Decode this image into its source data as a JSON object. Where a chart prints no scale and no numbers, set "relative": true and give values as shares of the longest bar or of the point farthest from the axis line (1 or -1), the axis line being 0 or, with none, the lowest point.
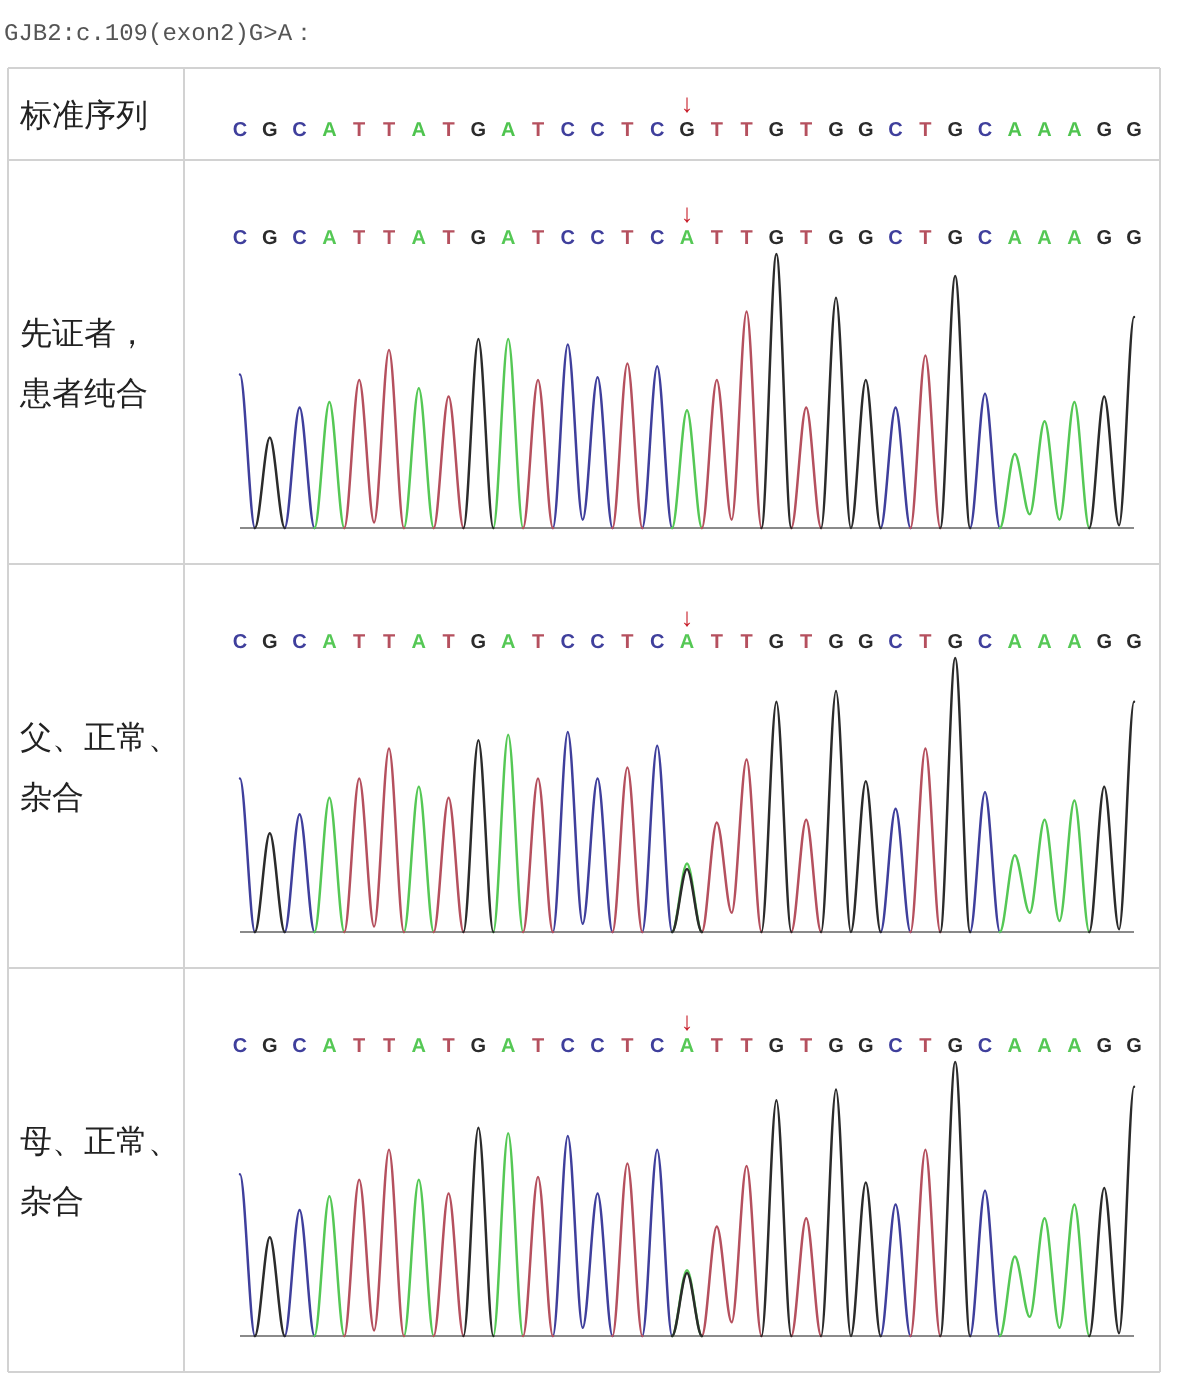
{
  "chart_data": [
    {
      "type": "other",
      "title": "GJB2:c.109(exon2)G>A：",
      "ylabel": "标准序列",
      "categories": [
        "C",
        "G",
        "C",
        "A",
        "T",
        "T",
        "A",
        "T",
        "G",
        "A",
        "T",
        "C",
        "C",
        "T",
        "C",
        "G",
        "T",
        "T",
        "G",
        "T",
        "G",
        "G",
        "C",
        "T",
        "G",
        "C",
        "A",
        "A",
        "A",
        "G",
        "G"
      ],
      "colors": [
        "#3f3f9c",
        "#2b2b2b",
        "#3f3f9c",
        "#4fc44f",
        "#b5505e",
        "#b5505e",
        "#4fc44f",
        "#b5505e",
        "#2b2b2b",
        "#4fc44f",
        "#b5505e",
        "#3f3f9c",
        "#3f3f9c",
        "#b5505e",
        "#3f3f9c",
        "#2b2b2b",
        "#b5505e",
        "#b5505e",
        "#2b2b2b",
        "#b5505e",
        "#2b2b2b",
        "#2b2b2b",
        "#3f3f9c",
        "#b5505e",
        "#2b2b2b",
        "#3f3f9c",
        "#4fc44f",
        "#4fc44f",
        "#4fc44f",
        "#2b2b2b",
        "#2b2b2b"
      ],
      "annotations": [
        "↓"
      ]
    },
    {
      "type": "line",
      "ylabel": "先证者，患者纯合",
      "relative": true,
      "categories": [
        "C",
        null,
        "G",
        null,
        "C",
        null,
        "A",
        null,
        "T",
        null,
        "T",
        null,
        "A",
        null,
        "T",
        null,
        "G",
        null,
        "A",
        null,
        "T",
        null,
        "C",
        null,
        "C",
        null,
        "T",
        null,
        "C",
        null,
        "A",
        null,
        "T",
        null,
        "T",
        null,
        "G",
        null,
        "T",
        null,
        "G",
        null,
        "G",
        null,
        "C",
        null,
        "T",
        null,
        "G",
        null,
        "C",
        null,
        "A",
        null,
        "A",
        null,
        "A",
        null,
        "G",
        null,
        "G"
      ],
      "series": [
        {
          "color": "#3f3f9c",
          "values": [
            0.56,
            0,
            null,
            0,
            0.44,
            0,
            null,
            null,
            null,
            null,
            null,
            null,
            null,
            null,
            null,
            null,
            null,
            null,
            null,
            null,
            null,
            0,
            0.67,
            0.03,
            0.55,
            0,
            null,
            0,
            0.59,
            0,
            null,
            null,
            null,
            null,
            null,
            null,
            null,
            null,
            null,
            null,
            null,
            null,
            null,
            0,
            0.44,
            0,
            null,
            null,
            null,
            0,
            0.49,
            0,
            null,
            null,
            null,
            null,
            null,
            null,
            null,
            null,
            null
          ]
        },
        {
          "color": "#55c855",
          "values": [
            null,
            null,
            null,
            null,
            null,
            0,
            0.46,
            0,
            null,
            null,
            null,
            0,
            0.51,
            0,
            null,
            null,
            null,
            0,
            0.69,
            0,
            null,
            null,
            null,
            null,
            null,
            null,
            null,
            null,
            null,
            0,
            0.43,
            0,
            null,
            null,
            null,
            null,
            null,
            null,
            null,
            null,
            null,
            null,
            null,
            null,
            null,
            null,
            null,
            null,
            null,
            null,
            null,
            0,
            0.27,
            0.05,
            0.39,
            0.03,
            0.46,
            0,
            null,
            null,
            null
          ]
        },
        {
          "color": "#b5505e",
          "values": [
            null,
            null,
            null,
            null,
            null,
            null,
            null,
            0,
            0.54,
            0.02,
            0.65,
            0,
            null,
            0,
            0.48,
            0,
            null,
            null,
            null,
            0,
            0.54,
            0,
            null,
            null,
            null,
            0,
            0.6,
            0,
            null,
            null,
            null,
            0,
            0.54,
            0.03,
            0.79,
            0,
            null,
            0,
            0.44,
            0,
            null,
            null,
            null,
            null,
            null,
            0,
            0.63,
            0,
            null,
            null,
            null,
            null,
            null,
            null,
            null,
            null,
            null,
            null,
            null,
            null,
            null
          ]
        },
        {
          "color": "#2b2b2b",
          "values": [
            null,
            0,
            0.33,
            0,
            null,
            null,
            null,
            null,
            null,
            null,
            null,
            null,
            null,
            null,
            null,
            0,
            0.69,
            0,
            null,
            null,
            null,
            null,
            null,
            null,
            null,
            null,
            null,
            null,
            null,
            null,
            null,
            null,
            null,
            null,
            null,
            0,
            1.0,
            0,
            null,
            0,
            0.84,
            0,
            0.54,
            0,
            null,
            null,
            null,
            0,
            0.92,
            0,
            null,
            null,
            null,
            null,
            null,
            null,
            null,
            0,
            0.48,
            0.01,
            0.77
          ]
        }
      ],
      "annotations": [
        "↓"
      ]
    },
    {
      "type": "line",
      "ylabel": "父、正常、杂合",
      "relative": true,
      "categories": [
        "C",
        null,
        "G",
        null,
        "C",
        null,
        "A",
        null,
        "T",
        null,
        "T",
        null,
        "A",
        null,
        "T",
        null,
        "G",
        null,
        "A",
        null,
        "T",
        null,
        "C",
        null,
        "C",
        null,
        "T",
        null,
        "C",
        null,
        "A",
        null,
        "T",
        null,
        "T",
        null,
        "G",
        null,
        "T",
        null,
        "G",
        null,
        "G",
        null,
        "C",
        null,
        "T",
        null,
        "G",
        null,
        "C",
        null,
        "A",
        null,
        "A",
        null,
        "A",
        null,
        "G",
        null,
        "G"
      ],
      "series": [
        {
          "color": "#3f3f9c",
          "values": [
            0.56,
            0,
            null,
            0,
            0.43,
            0,
            null,
            null,
            null,
            null,
            null,
            null,
            null,
            null,
            null,
            null,
            null,
            null,
            null,
            null,
            null,
            0,
            0.73,
            0.03,
            0.56,
            0,
            null,
            0,
            0.68,
            0,
            null,
            null,
            null,
            null,
            null,
            null,
            null,
            null,
            null,
            null,
            null,
            null,
            null,
            0,
            0.45,
            0,
            null,
            null,
            null,
            0,
            0.51,
            0,
            null,
            null,
            null,
            null,
            null,
            null,
            null,
            null,
            null
          ]
        },
        {
          "color": "#55c855",
          "values": [
            null,
            null,
            null,
            null,
            null,
            0,
            0.49,
            0,
            null,
            null,
            null,
            0,
            0.53,
            0,
            null,
            null,
            null,
            0,
            0.72,
            0,
            null,
            null,
            null,
            null,
            null,
            null,
            null,
            null,
            null,
            0,
            0.25,
            0,
            null,
            null,
            null,
            null,
            null,
            null,
            null,
            null,
            null,
            null,
            null,
            null,
            null,
            null,
            null,
            null,
            null,
            null,
            null,
            0,
            0.28,
            0.07,
            0.41,
            0.04,
            0.48,
            0,
            null,
            null,
            null
          ]
        },
        {
          "color": "#b5505e",
          "values": [
            null,
            null,
            null,
            null,
            null,
            null,
            null,
            0,
            0.56,
            0.02,
            0.67,
            0,
            null,
            0,
            0.49,
            0,
            null,
            null,
            null,
            0,
            0.56,
            0,
            null,
            null,
            null,
            0,
            0.6,
            0,
            null,
            null,
            null,
            0,
            0.4,
            0.07,
            0.63,
            0,
            null,
            0,
            0.41,
            0,
            null,
            null,
            null,
            null,
            null,
            0,
            0.67,
            0,
            null,
            null,
            null,
            null,
            null,
            null,
            null,
            null,
            null,
            null,
            null,
            null,
            null
          ]
        },
        {
          "color": "#2b2b2b",
          "values": [
            null,
            0,
            0.36,
            0,
            null,
            null,
            null,
            null,
            null,
            null,
            null,
            null,
            null,
            null,
            null,
            0,
            0.7,
            0,
            null,
            null,
            null,
            null,
            null,
            null,
            null,
            null,
            null,
            null,
            null,
            0,
            0.23,
            0,
            null,
            null,
            null,
            0,
            0.84,
            0,
            null,
            0,
            0.88,
            0,
            0.55,
            0,
            null,
            null,
            null,
            0,
            1.0,
            0,
            null,
            null,
            null,
            null,
            null,
            null,
            null,
            0,
            0.53,
            0.01,
            0.84
          ]
        }
      ],
      "annotations": [
        "↓"
      ]
    },
    {
      "type": "line",
      "ylabel": "母、正常、杂合",
      "relative": true,
      "categories": [
        "C",
        null,
        "G",
        null,
        "C",
        null,
        "A",
        null,
        "T",
        null,
        "T",
        null,
        "A",
        null,
        "T",
        null,
        "G",
        null,
        "A",
        null,
        "T",
        null,
        "C",
        null,
        "C",
        null,
        "T",
        null,
        "C",
        null,
        "A",
        null,
        "T",
        null,
        "T",
        null,
        "G",
        null,
        "T",
        null,
        "G",
        null,
        "G",
        null,
        "C",
        null,
        "T",
        null,
        "G",
        null,
        "C",
        null,
        "A",
        null,
        "A",
        null,
        "A",
        null,
        "G",
        null,
        "G"
      ],
      "series": [
        {
          "color": "#3f3f9c",
          "values": [
            0.59,
            0,
            null,
            0,
            0.46,
            0,
            null,
            null,
            null,
            null,
            null,
            null,
            null,
            null,
            null,
            null,
            null,
            null,
            null,
            null,
            null,
            0,
            0.73,
            0.03,
            0.52,
            0,
            null,
            0,
            0.68,
            0,
            null,
            null,
            null,
            null,
            null,
            null,
            null,
            null,
            null,
            null,
            null,
            null,
            null,
            0,
            0.48,
            0,
            null,
            null,
            null,
            0,
            0.53,
            0,
            null,
            null,
            null,
            null,
            null,
            null,
            null,
            null,
            null
          ]
        },
        {
          "color": "#55c855",
          "values": [
            null,
            null,
            null,
            null,
            null,
            0,
            0.51,
            0,
            null,
            null,
            null,
            0,
            0.57,
            0,
            null,
            null,
            null,
            0,
            0.74,
            0,
            null,
            null,
            null,
            null,
            null,
            null,
            null,
            null,
            null,
            0,
            0.24,
            0,
            null,
            null,
            null,
            null,
            null,
            null,
            null,
            null,
            null,
            null,
            null,
            null,
            null,
            null,
            null,
            null,
            null,
            null,
            null,
            0,
            0.29,
            0.07,
            0.43,
            0.03,
            0.48,
            0,
            null,
            null,
            null
          ]
        },
        {
          "color": "#b5505e",
          "values": [
            null,
            null,
            null,
            null,
            null,
            null,
            null,
            0,
            0.57,
            0.02,
            0.68,
            0,
            null,
            0,
            0.52,
            0,
            null,
            null,
            null,
            0,
            0.58,
            0,
            null,
            null,
            null,
            0,
            0.63,
            0,
            null,
            null,
            null,
            0,
            0.4,
            0.05,
            0.62,
            0,
            null,
            0,
            0.43,
            0,
            null,
            null,
            null,
            null,
            null,
            0,
            0.68,
            0,
            null,
            null,
            null,
            null,
            null,
            null,
            null,
            null,
            null,
            null,
            null,
            null,
            null
          ]
        },
        {
          "color": "#2b2b2b",
          "values": [
            null,
            0,
            0.36,
            0,
            null,
            null,
            null,
            null,
            null,
            null,
            null,
            null,
            null,
            null,
            null,
            0,
            0.76,
            0,
            null,
            null,
            null,
            null,
            null,
            null,
            null,
            null,
            null,
            null,
            null,
            0,
            0.23,
            0,
            null,
            null,
            null,
            0,
            0.86,
            0,
            null,
            0,
            0.9,
            0,
            0.56,
            0,
            null,
            null,
            null,
            0,
            1.0,
            0,
            null,
            null,
            null,
            null,
            null,
            null,
            null,
            0,
            0.54,
            0.01,
            0.91
          ]
        }
      ],
      "annotations": [
        "↓"
      ]
    }
  ]
}
